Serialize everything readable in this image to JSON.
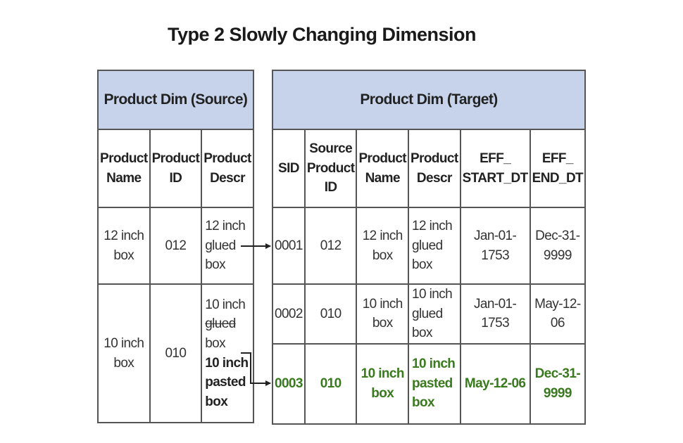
{
  "title": "Type 2 Slowly Changing Dimension",
  "source": {
    "header": "Product Dim (Source)",
    "columns": [
      "Product Name",
      "Product ID",
      "Product Descr"
    ],
    "rows": [
      {
        "name": "12 inch box",
        "id": "012",
        "descr": "12 inch glued box"
      },
      {
        "name": "10 inch box",
        "id": "010",
        "descr_old": "10 inch glued box",
        "descr_old_struck_word": "glued",
        "descr_new": "10 inch pasted box"
      }
    ]
  },
  "target": {
    "header": "Product Dim (Target)",
    "columns": [
      "SID",
      "Source Product ID",
      "Product Name",
      "Product Descr",
      "EFF_ START_DT",
      "EFF_ END_DT"
    ],
    "rows": [
      {
        "sid": "0001",
        "src_id": "012",
        "name": "12 inch box",
        "descr": "12 inch glued box",
        "start": "Jan-01-1753",
        "end": "Dec-31-9999",
        "highlight": false
      },
      {
        "sid": "0002",
        "src_id": "010",
        "name": "10 inch box",
        "descr": "10 inch glued box",
        "start": "Jan-01-1753",
        "end": "May-12-06",
        "highlight": false
      },
      {
        "sid": "0003",
        "src_id": "010",
        "name": "10 inch box",
        "descr": "10 inch pasted box",
        "start": "May-12-06",
        "end": "Dec-31-9999",
        "highlight": true
      }
    ]
  },
  "colors": {
    "header_fill": "#c7d3ea",
    "border": "#555555",
    "new_row_text": "#3a7a1e"
  }
}
